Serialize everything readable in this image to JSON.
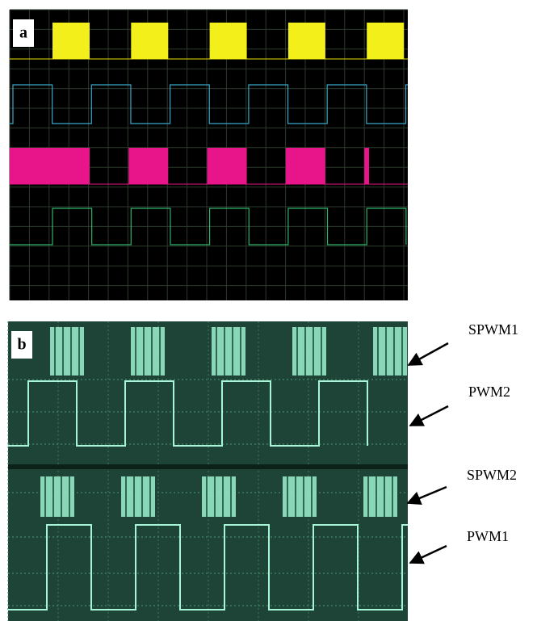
{
  "panel_a": {
    "label": "a"
  },
  "panel_b": {
    "label": "b",
    "signals": [
      "SPWM1",
      "PWM2",
      "SPWM2",
      "PWM1"
    ]
  }
}
